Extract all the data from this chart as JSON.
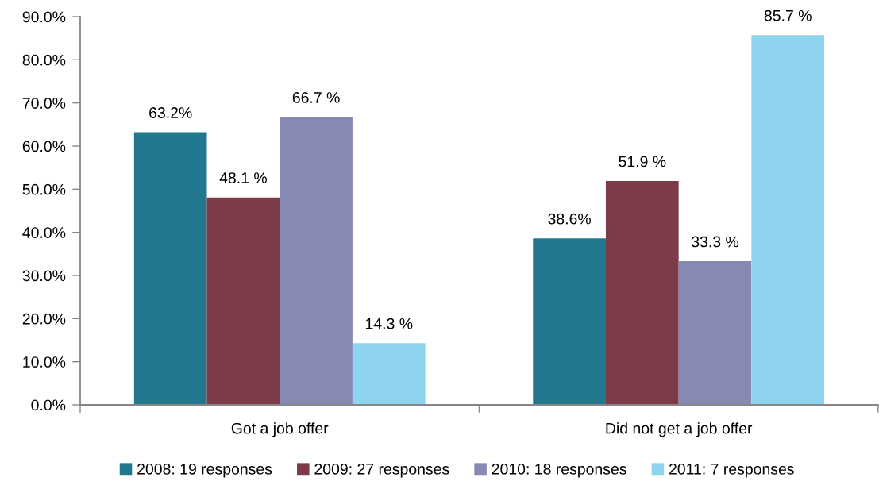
{
  "chart_data": {
    "type": "bar",
    "categories": [
      "Got a job offer",
      "Did not get a job offer"
    ],
    "series": [
      {
        "name": "2008: 19 responses",
        "color": "#21788e",
        "values": [
          63.2,
          38.6
        ],
        "value_labels": [
          "63.2%",
          "38.6%"
        ]
      },
      {
        "name": "2009: 27 responses",
        "color": "#7d3b4a",
        "values": [
          48.1,
          51.9
        ],
        "value_labels": [
          "48.1 %",
          "51.9 %"
        ]
      },
      {
        "name": "2010: 18 responses",
        "color": "#8789b5",
        "values": [
          66.7,
          33.3
        ],
        "value_labels": [
          "66.7 %",
          "33.3 %"
        ]
      },
      {
        "name": "2011: 7 responses",
        "color": "#8fd4ef",
        "values": [
          14.3,
          85.7
        ],
        "value_labels": [
          "14.3 %",
          "85.7 %"
        ]
      }
    ],
    "ylim": [
      0,
      90
    ],
    "yticks": [
      {
        "value": 0,
        "label": "0.0%"
      },
      {
        "value": 10,
        "label": "10.0%"
      },
      {
        "value": 20,
        "label": "20.0%"
      },
      {
        "value": 30,
        "label": "30.0%"
      },
      {
        "value": 40,
        "label": "40.0%"
      },
      {
        "value": 50,
        "label": "50.0%"
      },
      {
        "value": 60,
        "label": "60.0%"
      },
      {
        "value": 70,
        "label": "70.0%"
      },
      {
        "value": 80,
        "label": "80.0%"
      },
      {
        "value": 90,
        "label": "90.0%"
      }
    ],
    "grid": false,
    "legend": "bottom"
  }
}
